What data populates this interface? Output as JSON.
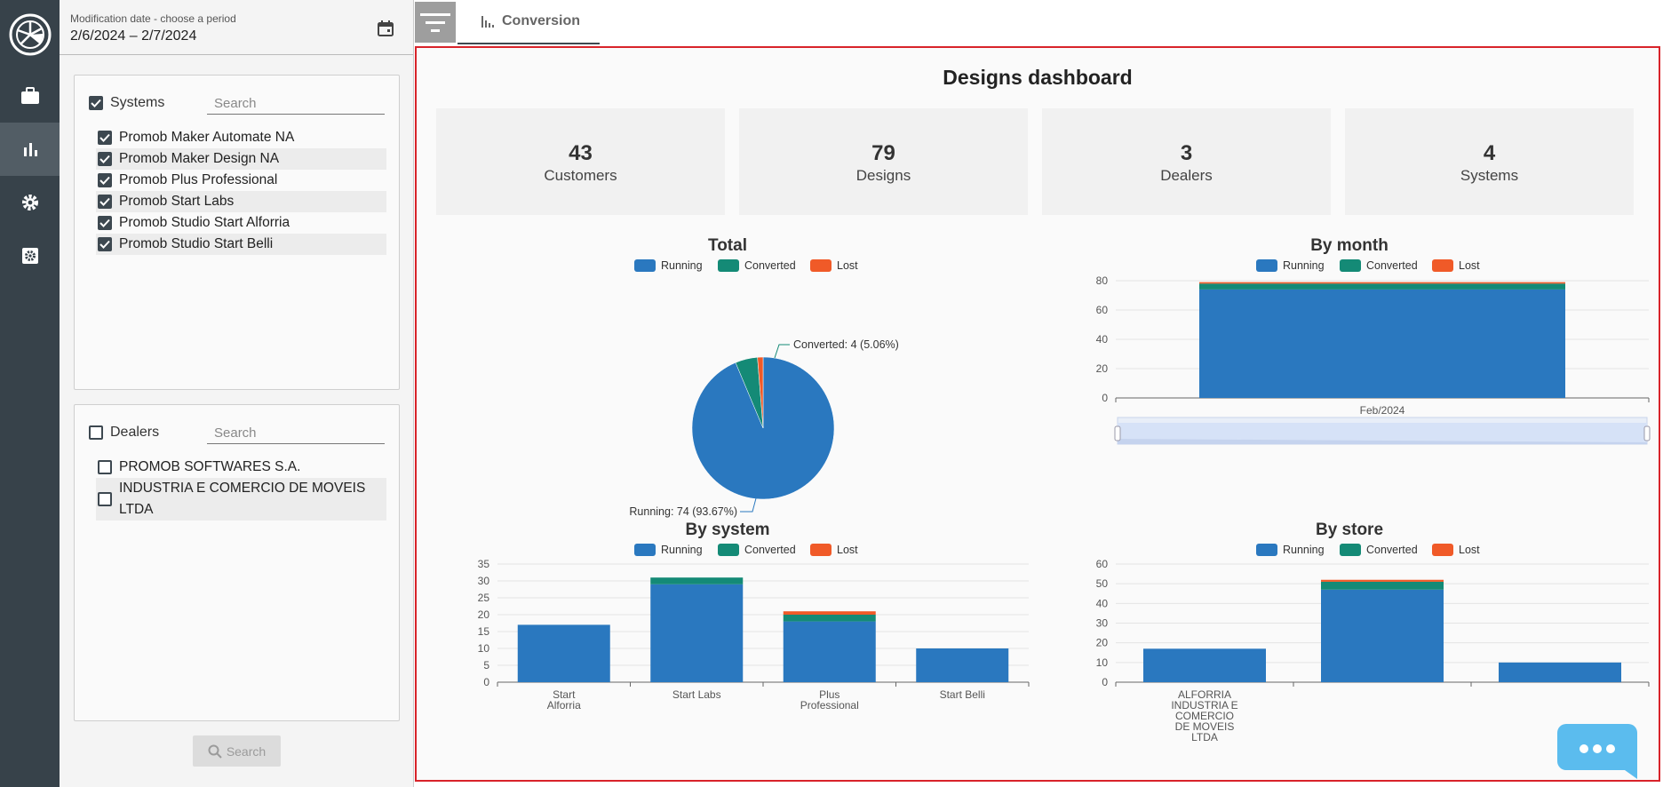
{
  "filters": {
    "date": {
      "caption": "Modification date - choose a period",
      "value": "2/6/2024 – 2/7/2024"
    },
    "systems": {
      "title": "Systems",
      "search_placeholder": "Search",
      "items": [
        "Promob Maker Automate NA",
        "Promob Maker Design NA",
        "Promob Plus Professional",
        "Promob Start Labs",
        "Promob Studio Start Alforria",
        "Promob Studio Start Belli"
      ]
    },
    "dealers": {
      "title": "Dealers",
      "search_placeholder": "Search",
      "items": [
        "PROMOB SOFTWARES S.A.",
        "INDUSTRIA E COMERCIO DE  MOVEIS LTDA"
      ]
    },
    "search_button": "Search"
  },
  "tabs": [
    {
      "label": "Conversion"
    }
  ],
  "dashboard": {
    "title": "Designs dashboard",
    "kpis": [
      {
        "value": "43",
        "label": "Customers"
      },
      {
        "value": "79",
        "label": "Designs"
      },
      {
        "value": "3",
        "label": "Dealers"
      },
      {
        "value": "4",
        "label": "Systems"
      }
    ]
  },
  "colors": {
    "running": "#2a78bf",
    "converted": "#148a76",
    "lost": "#f05a28",
    "accent_border": "#d8232a",
    "rail": "#37424a"
  },
  "chart_data": [
    {
      "type": "pie",
      "title": "Total",
      "legend": [
        "Running",
        "Converted",
        "Lost"
      ],
      "slices": [
        {
          "name": "Running",
          "value": 74,
          "label": "Running: 74 (93.67%)"
        },
        {
          "name": "Converted",
          "value": 4,
          "label": "Converted: 4 (5.06%)"
        },
        {
          "name": "Lost",
          "value": 1
        }
      ]
    },
    {
      "type": "bar",
      "stacked": true,
      "title": "By month",
      "legend": [
        "Running",
        "Converted",
        "Lost"
      ],
      "categories": [
        "Feb/2024"
      ],
      "series": [
        {
          "name": "Running",
          "values": [
            74
          ]
        },
        {
          "name": "Converted",
          "values": [
            4
          ]
        },
        {
          "name": "Lost",
          "values": [
            1
          ]
        }
      ],
      "ylim": [
        0,
        80
      ],
      "yticks": [
        0,
        20,
        40,
        60,
        80
      ]
    },
    {
      "type": "bar",
      "stacked": true,
      "title": "By system",
      "legend": [
        "Running",
        "Converted",
        "Lost"
      ],
      "categories": [
        [
          "Start",
          "Alforria"
        ],
        [
          "Start Labs"
        ],
        [
          "Plus",
          "Professional"
        ],
        [
          "Start Belli"
        ]
      ],
      "series": [
        {
          "name": "Running",
          "values": [
            17,
            29,
            18,
            10
          ]
        },
        {
          "name": "Converted",
          "values": [
            0,
            2,
            2,
            0
          ]
        },
        {
          "name": "Lost",
          "values": [
            0,
            0,
            1,
            0
          ]
        }
      ],
      "ylim": [
        0,
        35
      ],
      "yticks": [
        0,
        5,
        10,
        15,
        20,
        25,
        30,
        35
      ]
    },
    {
      "type": "bar",
      "stacked": true,
      "title": "By store",
      "legend": [
        "Running",
        "Converted",
        "Lost"
      ],
      "categories": [
        [
          "ALFORRIA",
          "INDUSTRIA E",
          "COMERCIO",
          "DE MOVEIS",
          "LTDA"
        ],
        [],
        []
      ],
      "series": [
        {
          "name": "Running",
          "values": [
            17,
            47,
            10
          ]
        },
        {
          "name": "Converted",
          "values": [
            0,
            4,
            0
          ]
        },
        {
          "name": "Lost",
          "values": [
            0,
            1,
            0
          ]
        }
      ],
      "ylim": [
        0,
        60
      ],
      "yticks": [
        0,
        10,
        20,
        30,
        40,
        50,
        60
      ]
    }
  ]
}
